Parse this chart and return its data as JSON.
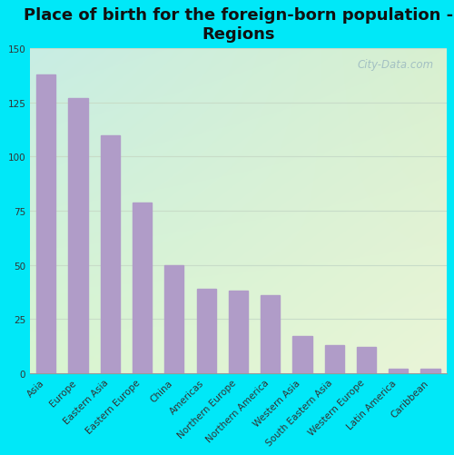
{
  "title": "Place of birth for the foreign-born population -\nRegions",
  "categories": [
    "Asia",
    "Europe",
    "Eastern Asia",
    "Eastern Europe",
    "China",
    "Americas",
    "Northern Europe",
    "Northern America",
    "Western Asia",
    "South Eastern Asia",
    "Western Europe",
    "Latin America",
    "Caribbean"
  ],
  "values": [
    138,
    127,
    110,
    79,
    50,
    39,
    38,
    36,
    17,
    13,
    12,
    2,
    2
  ],
  "bar_color": "#b09cc8",
  "ylim": [
    0,
    150
  ],
  "yticks": [
    0,
    25,
    50,
    75,
    100,
    125,
    150
  ],
  "background_outer": "#00e8f8",
  "grad_top_left": "#c8ede4",
  "grad_bottom_right": "#eaf5d8",
  "grid_color": "#c8dcc8",
  "title_fontsize": 13,
  "tick_fontsize": 7.5,
  "watermark": "City-Data.com"
}
